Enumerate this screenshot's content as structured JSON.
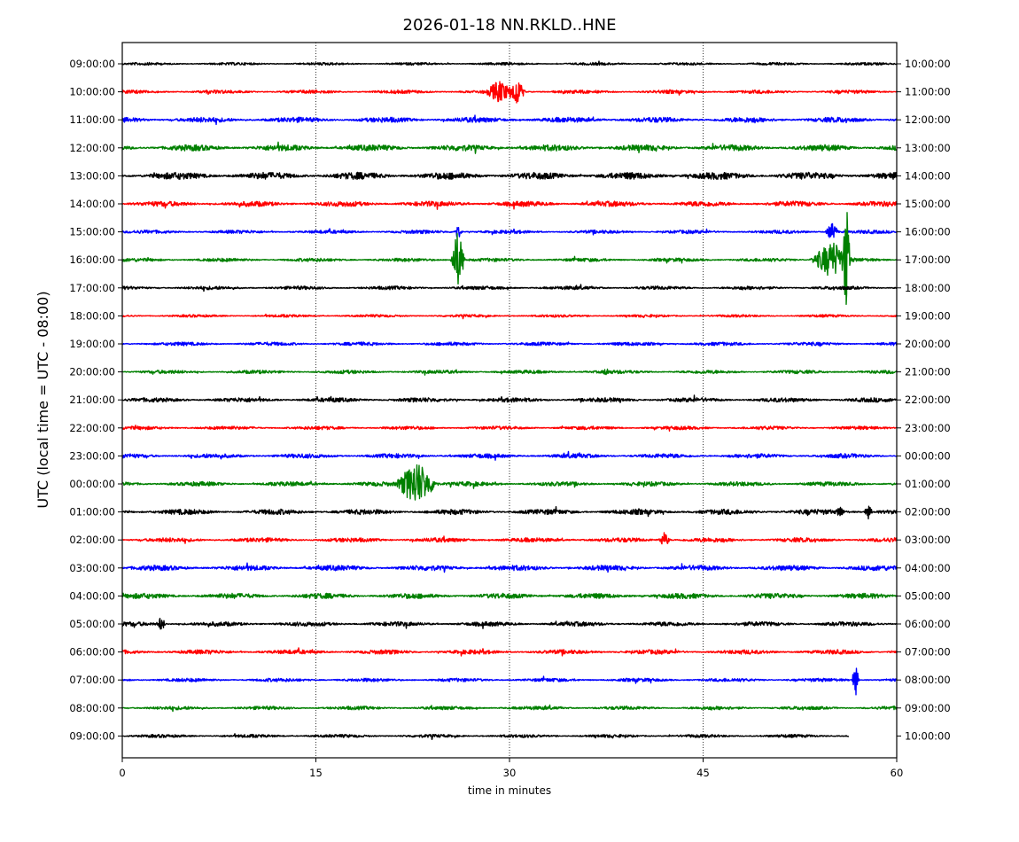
{
  "chart_data": {
    "type": "line",
    "title": "2026-01-18 NN.RKLD..HNE",
    "xlabel": "time in minutes",
    "ylabel": "UTC (local time = UTC - 08:00)",
    "xlim": [
      0,
      60
    ],
    "x_ticks": [
      "0",
      "15",
      "30",
      "45",
      "60"
    ],
    "x_tick_values": [
      0,
      15,
      30,
      45,
      60
    ],
    "vertical_grid": true,
    "trace_colors": [
      "#000000",
      "#ff0000",
      "#0000ff",
      "#008000"
    ],
    "left_labels": [
      "09:00:00",
      "10:00:00",
      "11:00:00",
      "12:00:00",
      "13:00:00",
      "14:00:00",
      "15:00:00",
      "16:00:00",
      "17:00:00",
      "18:00:00",
      "19:00:00",
      "20:00:00",
      "21:00:00",
      "22:00:00",
      "23:00:00",
      "00:00:00",
      "01:00:00",
      "02:00:00",
      "03:00:00",
      "04:00:00",
      "05:00:00",
      "06:00:00",
      "07:00:00",
      "08:00:00",
      "09:00:00"
    ],
    "right_labels": [
      "10:00:00",
      "11:00:00",
      "12:00:00",
      "13:00:00",
      "14:00:00",
      "15:00:00",
      "16:00:00",
      "17:00:00",
      "18:00:00",
      "19:00:00",
      "20:00:00",
      "21:00:00",
      "22:00:00",
      "23:00:00",
      "00:00:00",
      "01:00:00",
      "02:00:00",
      "03:00:00",
      "04:00:00",
      "05:00:00",
      "06:00:00",
      "07:00:00",
      "08:00:00",
      "09:00:00",
      "10:00:00"
    ],
    "trace_noise": [
      1.5,
      2.0,
      3.0,
      3.5,
      4.0,
      3.0,
      2.0,
      2.0,
      2.0,
      1.5,
      2.0,
      2.0,
      2.5,
      2.0,
      2.5,
      2.5,
      3.0,
      2.5,
      3.0,
      3.0,
      2.5,
      2.5,
      2.0,
      2.0,
      1.8
    ],
    "trace_end_minute": [
      60,
      60,
      60,
      60,
      60,
      60,
      60,
      60,
      60,
      60,
      60,
      60,
      60,
      60,
      60,
      60,
      60,
      60,
      60,
      60,
      60,
      60,
      60,
      60,
      56.3
    ],
    "events": [
      {
        "trace": 1,
        "minute": 29.2,
        "amplitude": 14,
        "duration": 1.2
      },
      {
        "trace": 1,
        "minute": 30.5,
        "amplitude": 16,
        "duration": 0.8
      },
      {
        "trace": 6,
        "minute": 26.0,
        "amplitude": 8,
        "duration": 0.4
      },
      {
        "trace": 6,
        "minute": 55.0,
        "amplitude": 10,
        "duration": 0.6
      },
      {
        "trace": 7,
        "minute": 26.0,
        "amplitude": 34,
        "duration": 0.6
      },
      {
        "trace": 7,
        "minute": 55.0,
        "amplitude": 22,
        "duration": 1.8
      },
      {
        "trace": 7,
        "minute": 56.1,
        "amplitude": 80,
        "duration": 0.3
      },
      {
        "trace": 11,
        "minute": 37.5,
        "amplitude": 6,
        "duration": 0.3
      },
      {
        "trace": 15,
        "minute": 22.8,
        "amplitude": 26,
        "duration": 1.8
      },
      {
        "trace": 16,
        "minute": 55.6,
        "amplitude": 8,
        "duration": 0.4
      },
      {
        "trace": 16,
        "minute": 57.8,
        "amplitude": 8,
        "duration": 0.4
      },
      {
        "trace": 17,
        "minute": 42.0,
        "amplitude": 9,
        "duration": 0.5
      },
      {
        "trace": 20,
        "minute": 3.0,
        "amplitude": 9,
        "duration": 0.4
      },
      {
        "trace": 22,
        "minute": 56.8,
        "amplitude": 20,
        "duration": 0.3
      }
    ]
  }
}
